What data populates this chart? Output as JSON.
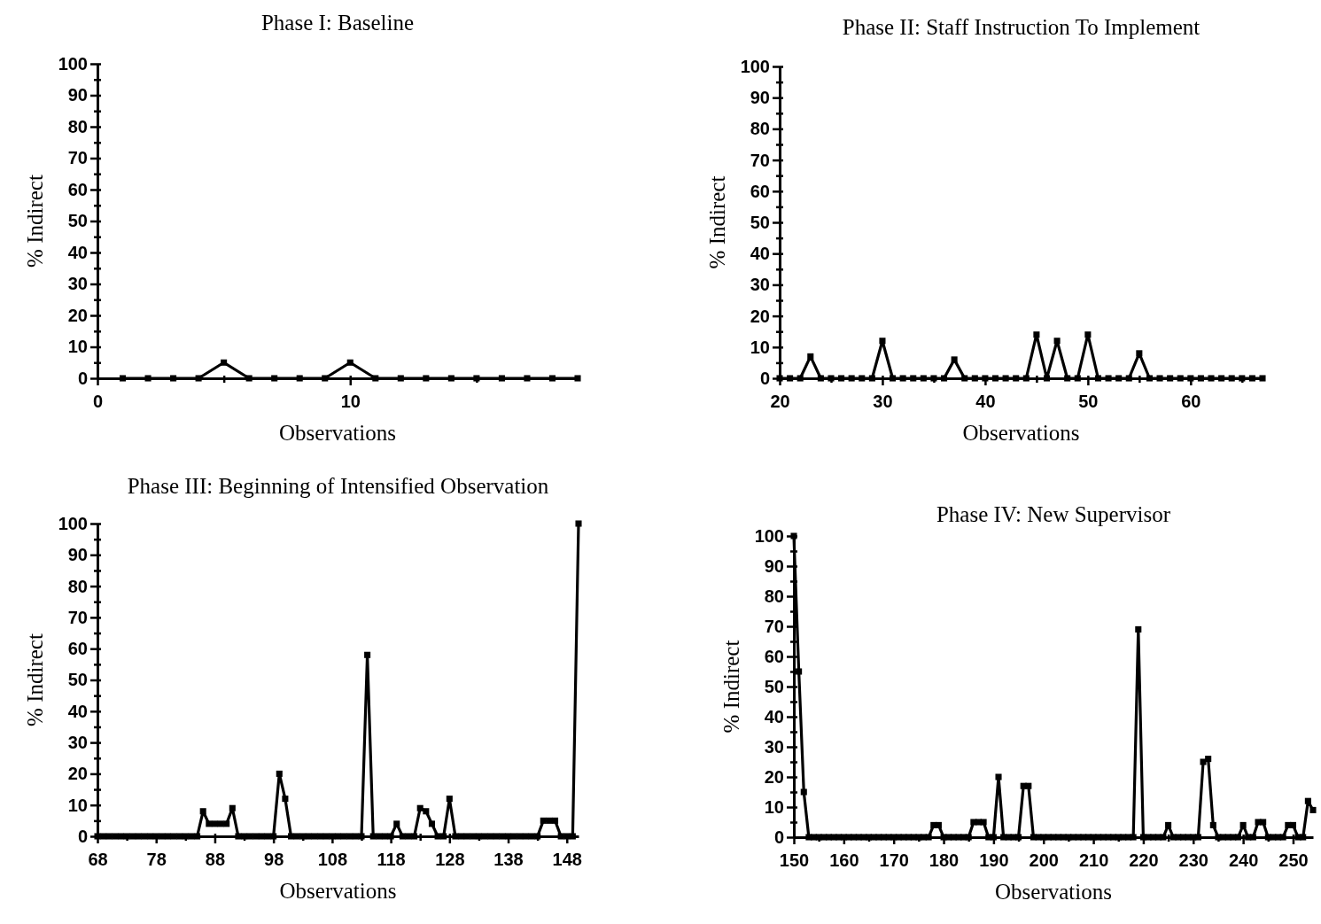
{
  "chart_data": [
    {
      "type": "line",
      "title": "Phase I: Baseline",
      "xlabel": "Observations",
      "ylabel": "% Indirect",
      "marker": "square",
      "line_style": "solid",
      "grid": false,
      "xlim": [
        0,
        19
      ],
      "xticks": [
        0,
        {
          "value": 5,
          "label": null
        },
        10,
        {
          "value": 15,
          "label": null
        }
      ],
      "ylim": [
        0,
        100
      ],
      "yticks": [
        0,
        {
          "value": 5,
          "label": null
        },
        10,
        {
          "value": 15,
          "label": null
        },
        20,
        {
          "value": 25,
          "label": null
        },
        30,
        {
          "value": 35,
          "label": null
        },
        40,
        {
          "value": 45,
          "label": null
        },
        50,
        {
          "value": 55,
          "label": null
        },
        60,
        {
          "value": 65,
          "label": null
        },
        70,
        {
          "value": 75,
          "label": null
        },
        80,
        {
          "value": 85,
          "label": null
        },
        90,
        {
          "value": 95,
          "label": null
        },
        100
      ],
      "series": [
        {
          "color": "#000000",
          "x": [
            1,
            2,
            3,
            4,
            5,
            6,
            7,
            8,
            9,
            10,
            11,
            12,
            13,
            14,
            15,
            16,
            17,
            18,
            19
          ],
          "values": [
            0,
            0,
            0,
            0,
            5,
            0,
            0,
            0,
            0,
            5,
            0,
            0,
            0,
            0,
            0,
            0,
            0,
            0,
            0
          ]
        }
      ]
    },
    {
      "type": "line",
      "title": "Phase II: Staff Instruction To Implement",
      "xlabel": "Observations",
      "ylabel": "% Indirect",
      "marker": "square",
      "line_style": "solid",
      "grid": false,
      "xlim": [
        20,
        67
      ],
      "xticks": [
        20,
        {
          "value": 25,
          "label": null
        },
        30,
        {
          "value": 35,
          "label": null
        },
        40,
        {
          "value": 45,
          "label": null
        },
        50,
        {
          "value": 55,
          "label": null
        },
        60,
        {
          "value": 65,
          "label": null
        }
      ],
      "ylim": [
        0,
        100
      ],
      "yticks": [
        0,
        {
          "value": 5,
          "label": null
        },
        10,
        {
          "value": 15,
          "label": null
        },
        20,
        {
          "value": 25,
          "label": null
        },
        30,
        {
          "value": 35,
          "label": null
        },
        40,
        {
          "value": 45,
          "label": null
        },
        50,
        {
          "value": 55,
          "label": null
        },
        60,
        {
          "value": 65,
          "label": null
        },
        70,
        {
          "value": 75,
          "label": null
        },
        80,
        {
          "value": 85,
          "label": null
        },
        90,
        {
          "value": 95,
          "label": null
        },
        100
      ],
      "series": [
        {
          "color": "#000000",
          "x": [
            20,
            21,
            22,
            23,
            24,
            25,
            26,
            27,
            28,
            29,
            30,
            31,
            32,
            33,
            34,
            35,
            36,
            37,
            38,
            39,
            40,
            41,
            42,
            43,
            44,
            45,
            46,
            47,
            48,
            49,
            50,
            51,
            52,
            53,
            54,
            55,
            56,
            57,
            58,
            59,
            60,
            61,
            62,
            63,
            64,
            65,
            66,
            67
          ],
          "values": [
            0,
            0,
            0,
            7,
            0,
            0,
            0,
            0,
            0,
            0,
            12,
            0,
            0,
            0,
            0,
            0,
            0,
            6,
            0,
            0,
            0,
            0,
            0,
            0,
            0,
            14,
            0,
            12,
            0,
            0,
            14,
            0,
            0,
            0,
            0,
            8,
            0,
            0,
            0,
            0,
            0,
            0,
            0,
            0,
            0,
            0,
            0,
            0
          ]
        }
      ]
    },
    {
      "type": "line",
      "title": "Phase III: Beginning of Intensified Observation",
      "xlabel": "Observations",
      "ylabel": "% Indirect",
      "marker": "square",
      "line_style": "solid",
      "grid": false,
      "xlim": [
        68,
        150
      ],
      "xticks": [
        68,
        {
          "value": 73,
          "label": null
        },
        78,
        {
          "value": 83,
          "label": null
        },
        88,
        {
          "value": 93,
          "label": null
        },
        98,
        {
          "value": 103,
          "label": null
        },
        108,
        {
          "value": 113,
          "label": null
        },
        118,
        {
          "value": 123,
          "label": null
        },
        128,
        {
          "value": 133,
          "label": null
        },
        138,
        {
          "value": 143,
          "label": null
        },
        148
      ],
      "ylim": [
        0,
        100
      ],
      "yticks": [
        0,
        {
          "value": 5,
          "label": null
        },
        10,
        {
          "value": 15,
          "label": null
        },
        20,
        {
          "value": 25,
          "label": null
        },
        30,
        {
          "value": 35,
          "label": null
        },
        40,
        {
          "value": 45,
          "label": null
        },
        50,
        {
          "value": 55,
          "label": null
        },
        60,
        {
          "value": 65,
          "label": null
        },
        70,
        {
          "value": 75,
          "label": null
        },
        80,
        {
          "value": 85,
          "label": null
        },
        90,
        {
          "value": 95,
          "label": null
        },
        100
      ],
      "series": [
        {
          "color": "#000000",
          "x": [
            68,
            69,
            70,
            71,
            72,
            73,
            74,
            75,
            76,
            77,
            78,
            79,
            80,
            81,
            82,
            83,
            84,
            85,
            86,
            87,
            88,
            89,
            90,
            91,
            92,
            93,
            94,
            95,
            96,
            97,
            98,
            99,
            100,
            101,
            102,
            103,
            104,
            105,
            106,
            107,
            108,
            109,
            110,
            111,
            112,
            113,
            114,
            115,
            116,
            117,
            118,
            119,
            120,
            121,
            122,
            123,
            124,
            125,
            126,
            127,
            128,
            129,
            130,
            131,
            132,
            133,
            134,
            135,
            136,
            137,
            138,
            139,
            140,
            141,
            142,
            143,
            144,
            145,
            146,
            147,
            148,
            149,
            150
          ],
          "values": [
            0,
            0,
            0,
            0,
            0,
            0,
            0,
            0,
            0,
            0,
            0,
            0,
            0,
            0,
            0,
            0,
            0,
            0,
            8,
            4,
            4,
            4,
            4,
            9,
            0,
            0,
            0,
            0,
            0,
            0,
            0,
            20,
            12,
            0,
            0,
            0,
            0,
            0,
            0,
            0,
            0,
            0,
            0,
            0,
            0,
            0,
            58,
            0,
            0,
            0,
            0,
            4,
            0,
            0,
            0,
            9,
            8,
            4,
            0,
            0,
            12,
            0,
            0,
            0,
            0,
            0,
            0,
            0,
            0,
            0,
            0,
            0,
            0,
            0,
            0,
            0,
            5,
            5,
            5,
            0,
            0,
            0,
            100
          ]
        }
      ]
    },
    {
      "type": "line",
      "title": "Phase IV: New Supervisor",
      "xlabel": "Observations",
      "ylabel": "% Indirect",
      "marker": "square",
      "line_style": "solid",
      "grid": false,
      "xlim": [
        150,
        254
      ],
      "xticks": [
        150,
        {
          "value": 155,
          "label": null
        },
        160,
        {
          "value": 165,
          "label": null
        },
        170,
        {
          "value": 175,
          "label": null
        },
        180,
        {
          "value": 185,
          "label": null
        },
        190,
        {
          "value": 195,
          "label": null
        },
        200,
        {
          "value": 205,
          "label": null
        },
        210,
        {
          "value": 215,
          "label": null
        },
        220,
        {
          "value": 225,
          "label": null
        },
        230,
        {
          "value": 235,
          "label": null
        },
        240,
        {
          "value": 245,
          "label": null
        },
        250
      ],
      "ylim": [
        0,
        100
      ],
      "yticks": [
        0,
        {
          "value": 5,
          "label": null
        },
        10,
        {
          "value": 15,
          "label": null
        },
        20,
        {
          "value": 25,
          "label": null
        },
        30,
        {
          "value": 35,
          "label": null
        },
        40,
        {
          "value": 45,
          "label": null
        },
        50,
        {
          "value": 55,
          "label": null
        },
        60,
        {
          "value": 65,
          "label": null
        },
        70,
        {
          "value": 75,
          "label": null
        },
        80,
        {
          "value": 85,
          "label": null
        },
        90,
        {
          "value": 95,
          "label": null
        },
        100
      ],
      "series": [
        {
          "color": "#000000",
          "x": [
            150,
            151,
            152,
            153,
            154,
            155,
            156,
            157,
            158,
            159,
            160,
            161,
            162,
            163,
            164,
            165,
            166,
            167,
            168,
            169,
            170,
            171,
            172,
            173,
            174,
            175,
            176,
            177,
            178,
            179,
            180,
            181,
            182,
            183,
            184,
            185,
            186,
            187,
            188,
            189,
            190,
            191,
            192,
            193,
            194,
            195,
            196,
            197,
            198,
            199,
            200,
            201,
            202,
            203,
            204,
            205,
            206,
            207,
            208,
            209,
            210,
            211,
            212,
            213,
            214,
            215,
            216,
            217,
            218,
            219,
            220,
            221,
            222,
            223,
            224,
            225,
            226,
            227,
            228,
            229,
            230,
            231,
            232,
            233,
            234,
            235,
            236,
            237,
            238,
            239,
            240,
            241,
            242,
            243,
            244,
            245,
            246,
            247,
            248,
            249,
            250,
            251,
            252,
            253,
            254
          ],
          "values": [
            100,
            55,
            15,
            0,
            0,
            0,
            0,
            0,
            0,
            0,
            0,
            0,
            0,
            0,
            0,
            0,
            0,
            0,
            0,
            0,
            0,
            0,
            0,
            0,
            0,
            0,
            0,
            0,
            4,
            4,
            0,
            0,
            0,
            0,
            0,
            0,
            5,
            5,
            5,
            0,
            0,
            20,
            0,
            0,
            0,
            0,
            17,
            17,
            0,
            0,
            0,
            0,
            0,
            0,
            0,
            0,
            0,
            0,
            0,
            0,
            0,
            0,
            0,
            0,
            0,
            0,
            0,
            0,
            0,
            69,
            0,
            0,
            0,
            0,
            0,
            4,
            0,
            0,
            0,
            0,
            0,
            0,
            25,
            26,
            4,
            0,
            0,
            0,
            0,
            0,
            4,
            0,
            0,
            5,
            5,
            0,
            0,
            0,
            0,
            4,
            4,
            0,
            0,
            12,
            9
          ]
        }
      ]
    }
  ]
}
